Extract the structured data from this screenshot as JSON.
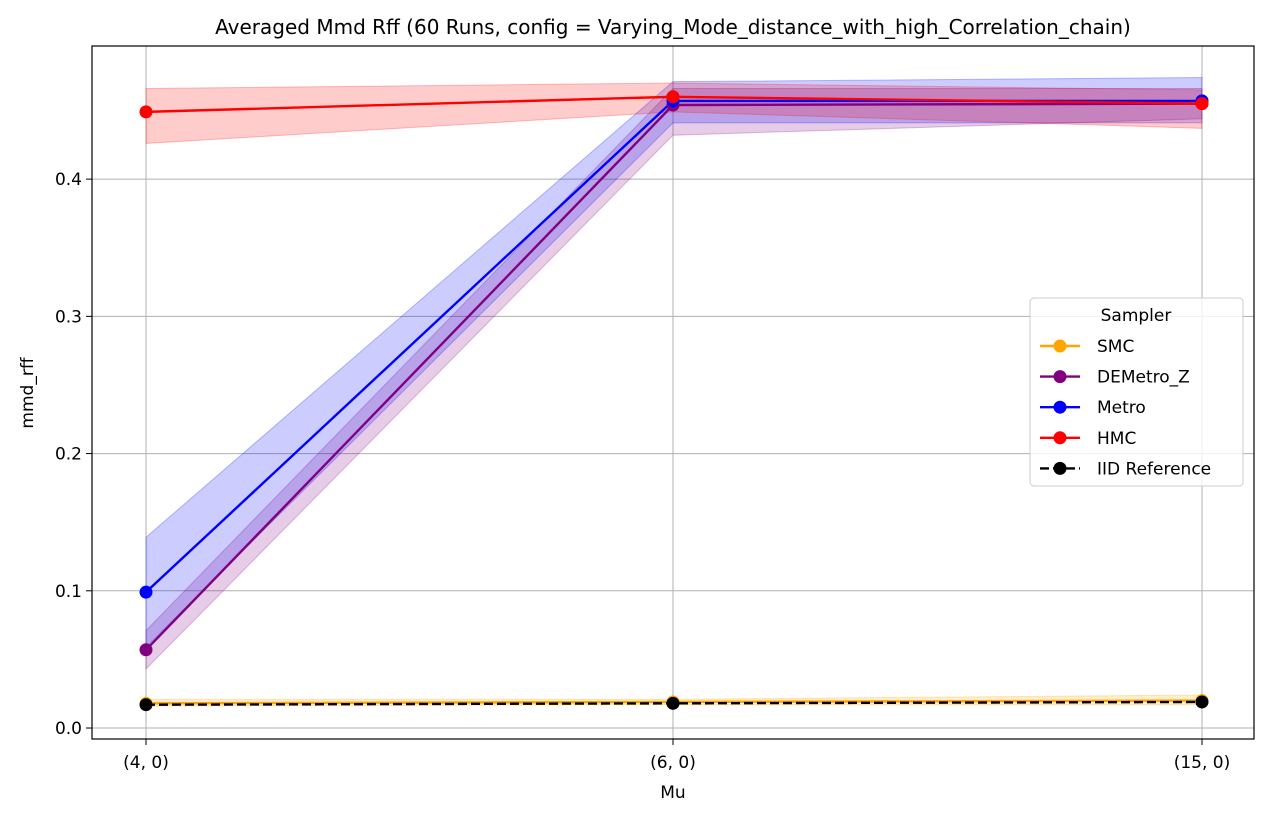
{
  "chart_data": {
    "type": "line",
    "title": "Averaged Mmd Rff (60 Runs, config = Varying_Mode_distance_with_high_Correlation_chain)",
    "xlabel": "Mu",
    "ylabel": "mmd_rff",
    "categories": [
      "(4, 0)",
      "(6, 0)",
      "(15, 0)"
    ],
    "ylim": [
      -0.008,
      0.497
    ],
    "yticks": [
      0.0,
      0.1,
      0.2,
      0.3,
      0.4
    ],
    "ytick_labels": [
      "0.0",
      "0.1",
      "0.2",
      "0.3",
      "0.4"
    ],
    "grid": true,
    "legend": {
      "title": "Sampler",
      "placement": "center-right"
    },
    "series": [
      {
        "name": "SMC",
        "color": "#ffa500",
        "linestyle": "solid",
        "values": [
          0.018,
          0.019,
          0.02
        ],
        "lower": [
          0.016,
          0.017,
          0.017
        ],
        "upper": [
          0.021,
          0.021,
          0.024
        ]
      },
      {
        "name": "DEMetro_Z",
        "color": "#800080",
        "linestyle": "solid",
        "values": [
          0.057,
          0.454,
          0.455
        ],
        "lower": [
          0.043,
          0.432,
          0.444
        ],
        "upper": [
          0.071,
          0.466,
          0.466
        ]
      },
      {
        "name": "Metro",
        "color": "#0000ff",
        "linestyle": "solid",
        "values": [
          0.099,
          0.457,
          0.457
        ],
        "lower": [
          0.059,
          0.441,
          0.441
        ],
        "upper": [
          0.139,
          0.471,
          0.474
        ]
      },
      {
        "name": "HMC",
        "color": "#ff0000",
        "linestyle": "solid",
        "values": [
          0.449,
          0.46,
          0.455
        ],
        "lower": [
          0.426,
          0.449,
          0.437
        ],
        "upper": [
          0.466,
          0.47,
          0.465
        ]
      },
      {
        "name": "IID Reference",
        "color": "#000000",
        "linestyle": "dashed",
        "values": [
          0.017,
          0.018,
          0.019
        ]
      }
    ]
  }
}
